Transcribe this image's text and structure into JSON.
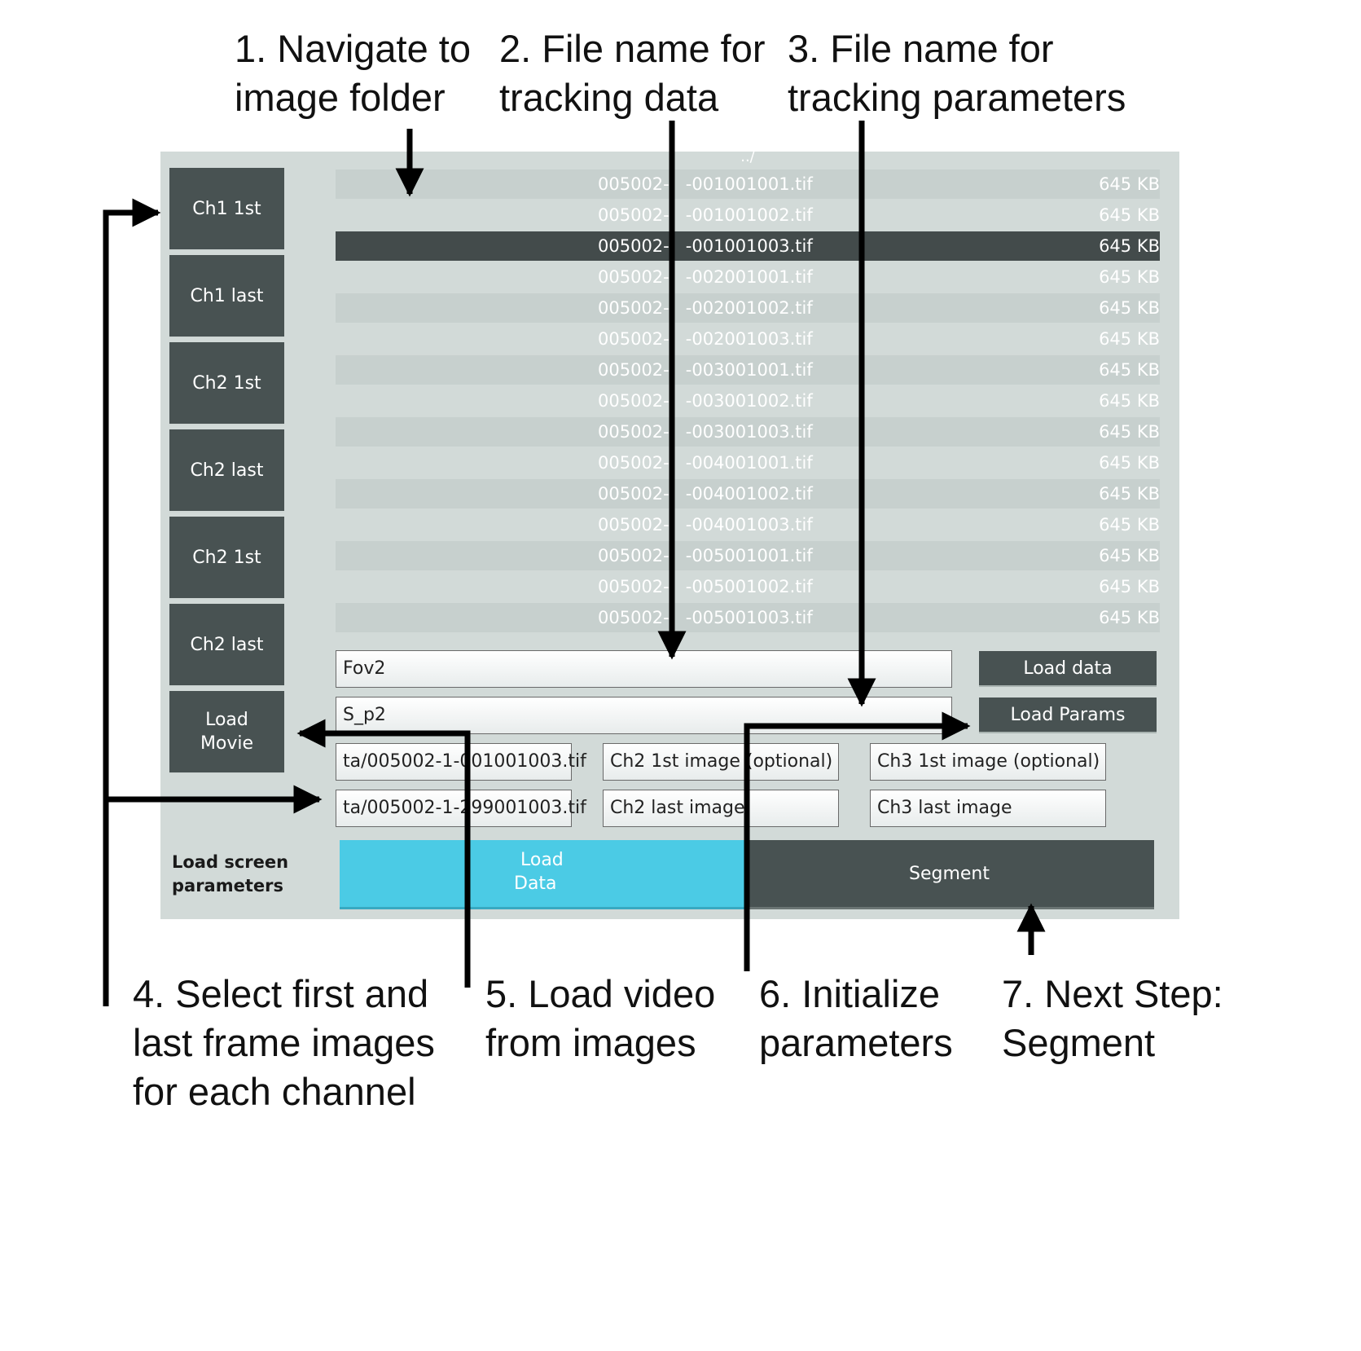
{
  "annotations": {
    "step1": [
      "1. Navigate to",
      "image folder"
    ],
    "step2": [
      "2. File name for",
      "tracking data"
    ],
    "step3": [
      "3. File name for",
      "tracking parameters"
    ],
    "step4": [
      "4. Select first and",
      "last frame images",
      "for each channel"
    ],
    "step5": [
      "5. Load video",
      "from images"
    ],
    "step6": [
      "6. Initialize",
      "parameters"
    ],
    "step7": [
      "7. Next Step:",
      "Segment"
    ]
  },
  "sidebar": {
    "buttons": [
      {
        "label": "Ch1 1st"
      },
      {
        "label": "Ch1 last"
      },
      {
        "label": "Ch2 1st"
      },
      {
        "label": "Ch2 last"
      },
      {
        "label": "Ch2 1st"
      },
      {
        "label": "Ch2 last"
      },
      {
        "label_lines": [
          "Load",
          "Movie"
        ]
      }
    ]
  },
  "file_list": {
    "parent_dir": "../",
    "selected_index": 2,
    "files": [
      {
        "name": "005002-   -001001001.tif",
        "size": "645 KB"
      },
      {
        "name": "005002-   -001001002.tif",
        "size": "645 KB"
      },
      {
        "name": "005002-   -001001003.tif",
        "size": "645 KB"
      },
      {
        "name": "005002-   -002001001.tif",
        "size": "645 KB"
      },
      {
        "name": "005002-   -002001002.tif",
        "size": "645 KB"
      },
      {
        "name": "005002-   -002001003.tif",
        "size": "645 KB"
      },
      {
        "name": "005002-   -003001001.tif",
        "size": "645 KB"
      },
      {
        "name": "005002-   -003001002.tif",
        "size": "645 KB"
      },
      {
        "name": "005002-   -003001003.tif",
        "size": "645 KB"
      },
      {
        "name": "005002-   -004001001.tif",
        "size": "645 KB"
      },
      {
        "name": "005002-   -004001002.tif",
        "size": "645 KB"
      },
      {
        "name": "005002-   -004001003.tif",
        "size": "645 KB"
      },
      {
        "name": "005002-   -005001001.tif",
        "size": "645 KB"
      },
      {
        "name": "005002-   -005001002.tif",
        "size": "645 KB"
      },
      {
        "name": "005002-   -005001003.tif",
        "size": "645 KB"
      }
    ]
  },
  "tracking_data_input": {
    "value": "Fov2"
  },
  "tracking_params_input": {
    "value": "S_p2"
  },
  "buttons": {
    "load_data": "Load data",
    "load_params": "Load Params"
  },
  "channel_inputs": {
    "ch1_first": "ta/005002-1-001001003.tif",
    "ch1_last": "ta/005002-1-299001003.tif",
    "ch2_first": "Ch2 1st image (optional)",
    "ch2_last": "Ch2 last image",
    "ch3_first": "Ch3 1st image (optional)",
    "ch3_last": "Ch3 last image"
  },
  "load_screen_label": [
    "Load screen",
    "parameters"
  ],
  "tabs": {
    "load_data": [
      "Load",
      "Data"
    ],
    "segment": "Segment"
  },
  "colors": {
    "panel": "#d2dad8",
    "dark_button": "#485252",
    "selected_row": "#434b4b",
    "active_tab": "#4bcbe5"
  }
}
